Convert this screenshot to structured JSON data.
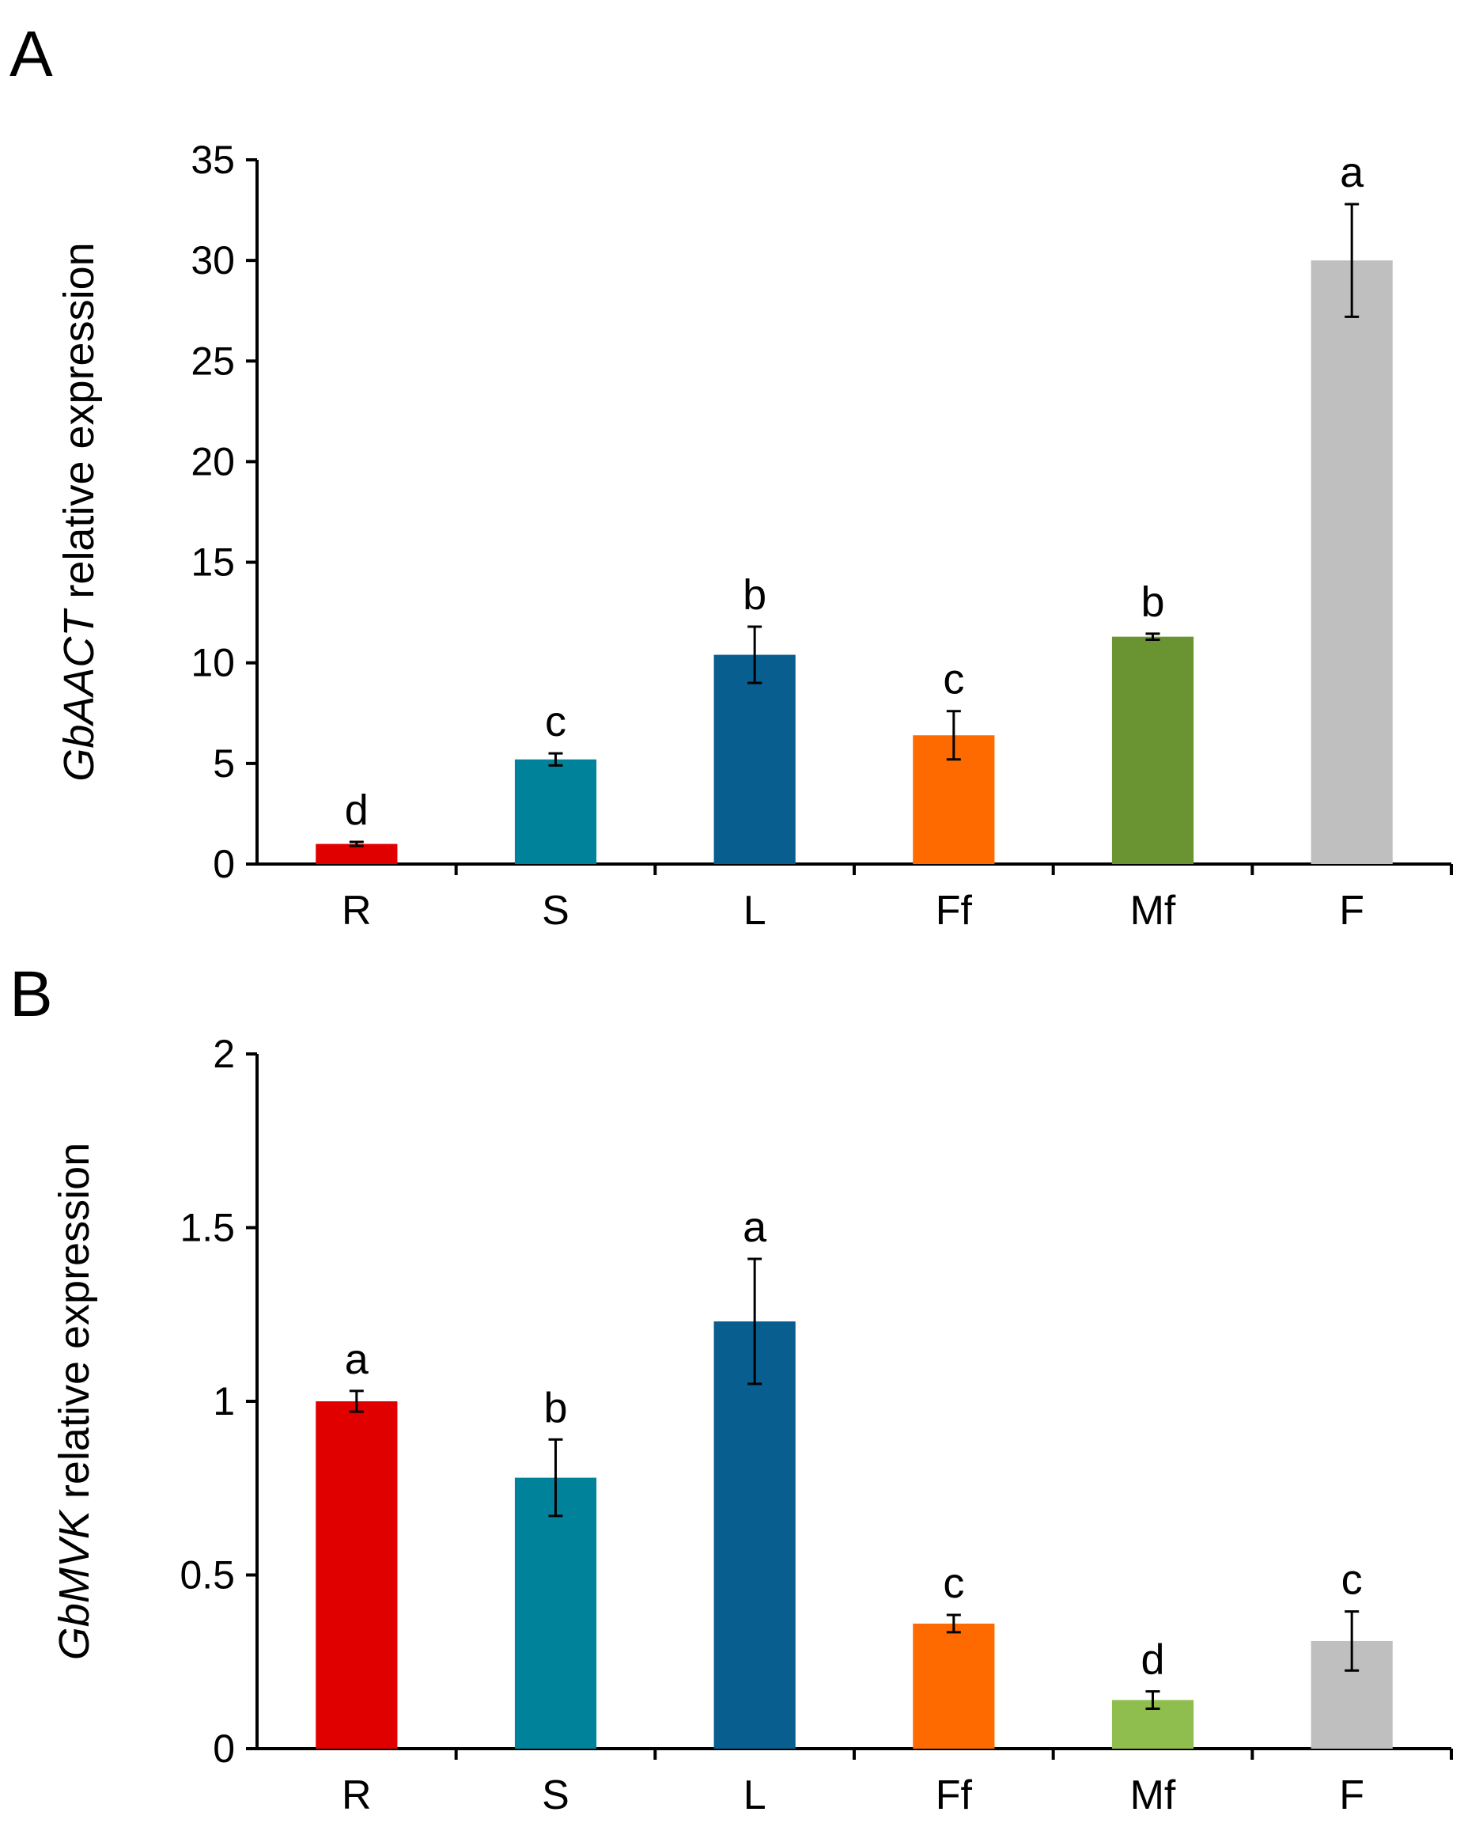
{
  "chart_data": [
    {
      "panel": "A",
      "type": "bar",
      "categories": [
        "R",
        "S",
        "L",
        "Ff",
        "Mf",
        "F"
      ],
      "values": [
        1.0,
        5.2,
        10.4,
        6.4,
        11.3,
        30.0
      ],
      "errors": [
        0.1,
        0.3,
        1.4,
        1.2,
        0.15,
        2.8
      ],
      "significance": [
        "d",
        "c",
        "b",
        "c",
        "b",
        "a"
      ],
      "colors": [
        "#e00000",
        "#00829b",
        "#075e8f",
        "#ff6a00",
        "#6a9331",
        "#bfbfbf"
      ],
      "ylabel_italic": "GbAACT",
      "ylabel_rest": " relative expression",
      "ylim": [
        0,
        35
      ],
      "yticks": [
        0,
        5,
        10,
        15,
        20,
        25,
        30,
        35
      ],
      "ytick_labels": [
        "0",
        "5",
        "10",
        "15",
        "20",
        "25",
        "30",
        "35"
      ],
      "grid": false,
      "legend": "none"
    },
    {
      "panel": "B",
      "type": "bar",
      "categories": [
        "R",
        "S",
        "L",
        "Ff",
        "Mf",
        "F"
      ],
      "values": [
        1.0,
        0.78,
        1.23,
        0.36,
        0.14,
        0.31
      ],
      "errors": [
        0.03,
        0.11,
        0.18,
        0.025,
        0.025,
        0.085
      ],
      "significance": [
        "a",
        "b",
        "a",
        "c",
        "d",
        "c"
      ],
      "colors": [
        "#e00000",
        "#00829b",
        "#075e8f",
        "#ff6a00",
        "#8fbe4f",
        "#bfbfbf"
      ],
      "ylabel_italic": "GbMVK",
      "ylabel_rest": " relative expression",
      "ylim": [
        0,
        2
      ],
      "yticks": [
        0,
        0.5,
        1,
        1.5,
        2
      ],
      "ytick_labels": [
        "0",
        "0.5",
        "1",
        "1.5",
        "2"
      ],
      "grid": false,
      "legend": "none"
    }
  ]
}
